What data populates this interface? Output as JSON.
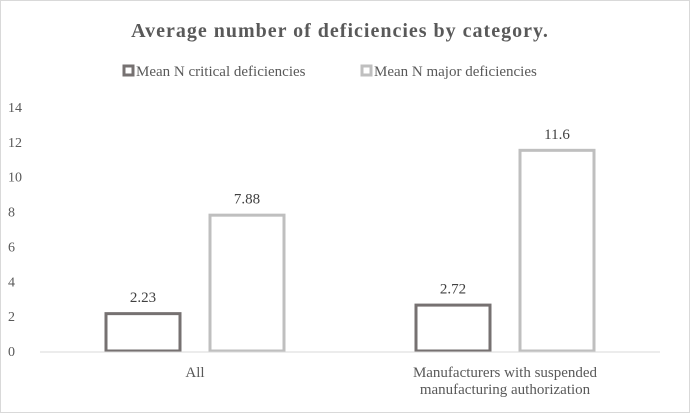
{
  "chart_data": {
    "type": "bar",
    "title": "Average number of deficiencies by category.",
    "categories": [
      "All",
      "Manufacturers with suspended manufacturing authorization"
    ],
    "category_lines": [
      [
        "All"
      ],
      [
        "Manufacturers with suspended",
        "manufacturing authorization"
      ]
    ],
    "series": [
      {
        "name": "Mean N critical deficiencies",
        "values": [
          2.23,
          2.72
        ],
        "labels": [
          "2.23",
          "2.72"
        ],
        "color": "#767171"
      },
      {
        "name": "Mean N major deficiencies",
        "values": [
          7.88,
          11.6
        ],
        "labels": [
          "7.88",
          "11.6"
        ],
        "color": "#bfbfbf"
      }
    ],
    "ylim": [
      0,
      14
    ],
    "yticks": [
      0,
      2,
      4,
      6,
      8,
      10,
      12,
      14
    ],
    "grid": false,
    "legend_position": "top",
    "bar_style": "outline"
  }
}
